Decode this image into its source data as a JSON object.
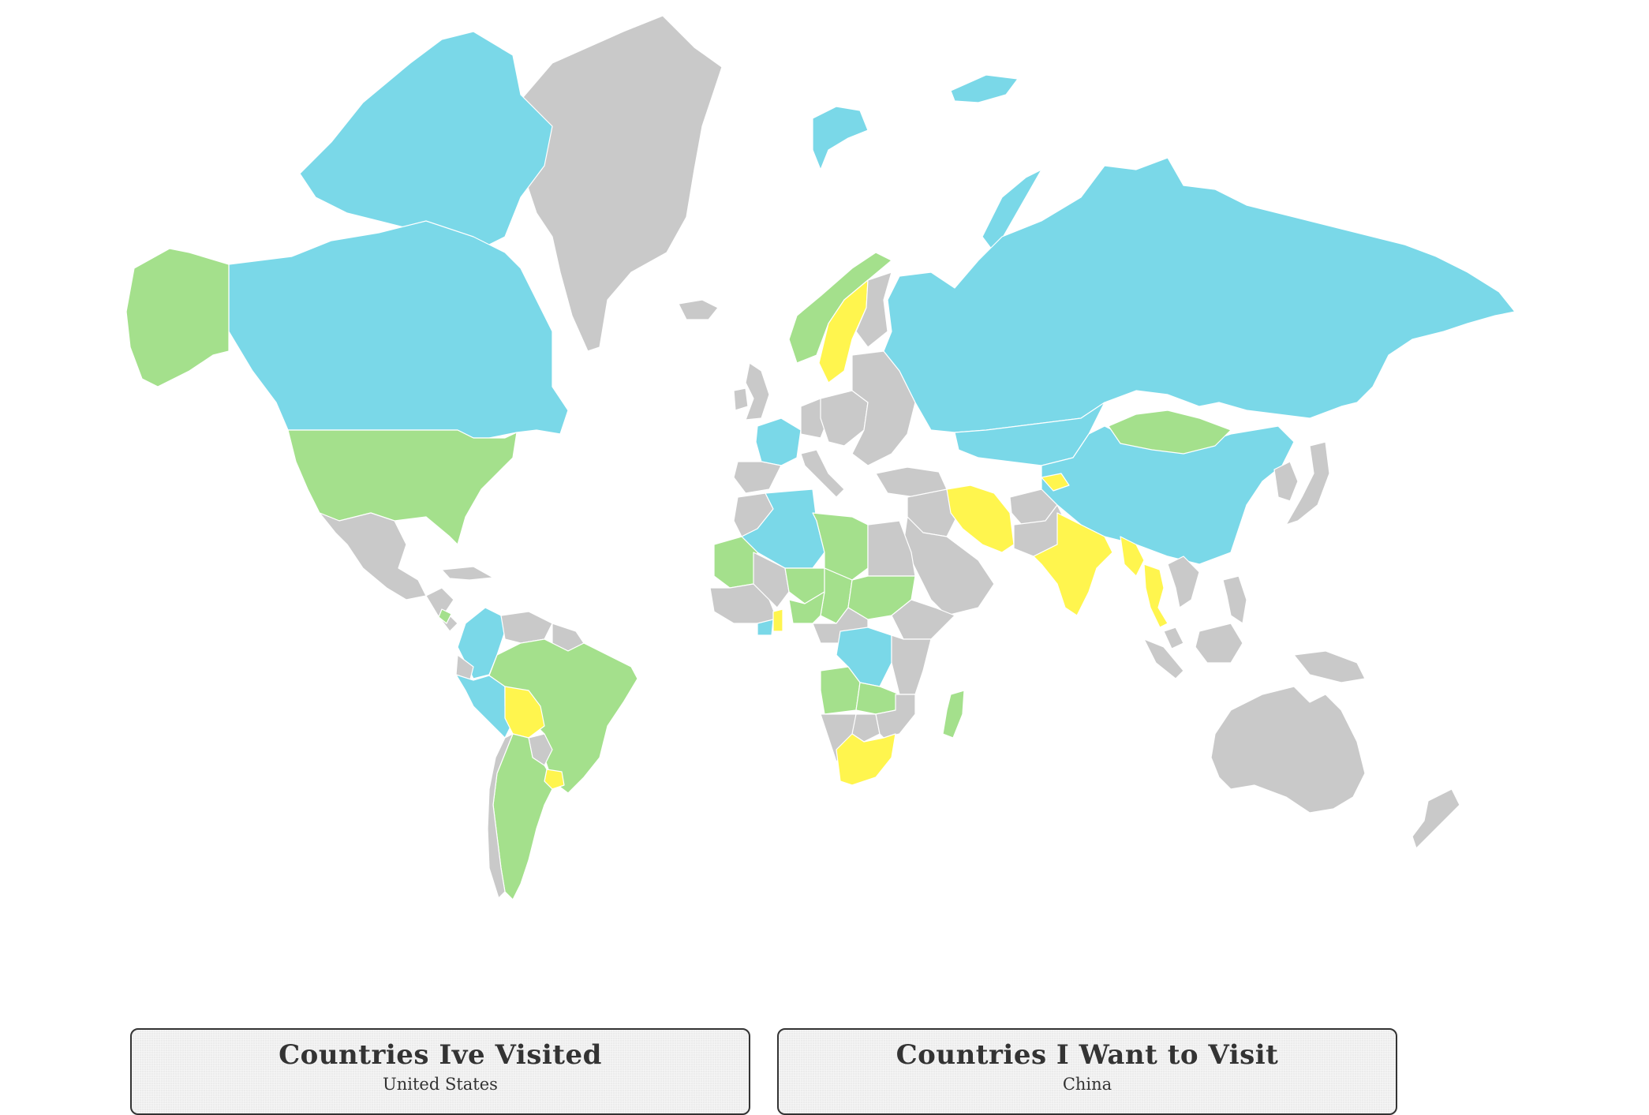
{
  "colors": {
    "visited": "#a4e08c",
    "want_to_visit": "#fff54e",
    "highlight": "#7ad8e8",
    "other": "#c9c9c9",
    "border": "#ffffff"
  },
  "regions": [
    {
      "name": "Greenland",
      "category": "other"
    },
    {
      "name": "Canada",
      "category": "highlight"
    },
    {
      "name": "Canadian Arctic Archipelago",
      "category": "highlight"
    },
    {
      "name": "Alaska",
      "category": "visited"
    },
    {
      "name": "United States",
      "category": "visited"
    },
    {
      "name": "Mexico",
      "category": "other"
    },
    {
      "name": "Central America",
      "category": "other"
    },
    {
      "name": "Cuba",
      "category": "other"
    },
    {
      "name": "Costa Rica",
      "category": "visited"
    },
    {
      "name": "Colombia",
      "category": "highlight"
    },
    {
      "name": "Venezuela",
      "category": "other"
    },
    {
      "name": "Guyana",
      "category": "other"
    },
    {
      "name": "Brazil",
      "category": "visited"
    },
    {
      "name": "Peru",
      "category": "highlight"
    },
    {
      "name": "Ecuador",
      "category": "other"
    },
    {
      "name": "Bolivia",
      "category": "want_to_visit"
    },
    {
      "name": "Paraguay",
      "category": "other"
    },
    {
      "name": "Uruguay",
      "category": "want_to_visit"
    },
    {
      "name": "Argentina",
      "category": "visited"
    },
    {
      "name": "Chile",
      "category": "other"
    },
    {
      "name": "Iceland",
      "category": "other"
    },
    {
      "name": "United Kingdom",
      "category": "other"
    },
    {
      "name": "Ireland",
      "category": "other"
    },
    {
      "name": "Norway",
      "category": "visited"
    },
    {
      "name": "Sweden",
      "category": "want_to_visit"
    },
    {
      "name": "Finland",
      "category": "other"
    },
    {
      "name": "France",
      "category": "highlight"
    },
    {
      "name": "Spain",
      "category": "other"
    },
    {
      "name": "Italy",
      "category": "other"
    },
    {
      "name": "Germany",
      "category": "other"
    },
    {
      "name": "Central Europe",
      "category": "other"
    },
    {
      "name": "Eastern Europe",
      "category": "other"
    },
    {
      "name": "Svalbard",
      "category": "highlight"
    },
    {
      "name": "Franz Josef Land",
      "category": "highlight"
    },
    {
      "name": "Novaya Zemlya",
      "category": "highlight"
    },
    {
      "name": "Russia",
      "category": "highlight"
    },
    {
      "name": "Kazakhstan",
      "category": "highlight"
    },
    {
      "name": "Mongolia",
      "category": "visited"
    },
    {
      "name": "China",
      "category": "highlight"
    },
    {
      "name": "Turkey",
      "category": "other"
    },
    {
      "name": "Middle East",
      "category": "other"
    },
    {
      "name": "Saudi Arabia",
      "category": "other"
    },
    {
      "name": "Iran",
      "category": "want_to_visit"
    },
    {
      "name": "Afghanistan",
      "category": "other"
    },
    {
      "name": "Pakistan",
      "category": "other"
    },
    {
      "name": "Nepal",
      "category": "want_to_visit"
    },
    {
      "name": "India",
      "category": "want_to_visit"
    },
    {
      "name": "Myanmar",
      "category": "want_to_visit"
    },
    {
      "name": "Thailand",
      "category": "want_to_visit"
    },
    {
      "name": "Vietnam",
      "category": "other"
    },
    {
      "name": "Korea",
      "category": "other"
    },
    {
      "name": "Japan",
      "category": "other"
    },
    {
      "name": "Philippines",
      "category": "other"
    },
    {
      "name": "Malaysia",
      "category": "other"
    },
    {
      "name": "Sumatra",
      "category": "other"
    },
    {
      "name": "Borneo",
      "category": "other"
    },
    {
      "name": "New Guinea",
      "category": "other"
    },
    {
      "name": "Australia",
      "category": "other"
    },
    {
      "name": "New Zealand",
      "category": "other"
    },
    {
      "name": "Morocco",
      "category": "other"
    },
    {
      "name": "Algeria",
      "category": "highlight"
    },
    {
      "name": "Libya",
      "category": "visited"
    },
    {
      "name": "Egypt",
      "category": "other"
    },
    {
      "name": "Mauritania",
      "category": "visited"
    },
    {
      "name": "West Africa",
      "category": "other"
    },
    {
      "name": "Mali",
      "category": "other"
    },
    {
      "name": "Niger",
      "category": "visited"
    },
    {
      "name": "Chad",
      "category": "visited"
    },
    {
      "name": "Sudan",
      "category": "visited"
    },
    {
      "name": "Nigeria",
      "category": "visited"
    },
    {
      "name": "Ghana",
      "category": "want_to_visit"
    },
    {
      "name": "Ivory Coast",
      "category": "highlight"
    },
    {
      "name": "Ethiopia",
      "category": "other"
    },
    {
      "name": "DR Congo",
      "category": "highlight"
    },
    {
      "name": "Central Africa",
      "category": "other"
    },
    {
      "name": "East Africa",
      "category": "other"
    },
    {
      "name": "Angola",
      "category": "visited"
    },
    {
      "name": "Zambia",
      "category": "visited"
    },
    {
      "name": "Namibia",
      "category": "other"
    },
    {
      "name": "Botswana",
      "category": "other"
    },
    {
      "name": "Mozambique",
      "category": "other"
    },
    {
      "name": "South Africa",
      "category": "want_to_visit"
    },
    {
      "name": "Madagascar",
      "category": "visited"
    }
  ],
  "panels": [
    {
      "title": "Countries Ive Visited",
      "items": [
        "United States"
      ]
    },
    {
      "title": "Countries I Want to Visit",
      "items": [
        "China"
      ]
    }
  ]
}
